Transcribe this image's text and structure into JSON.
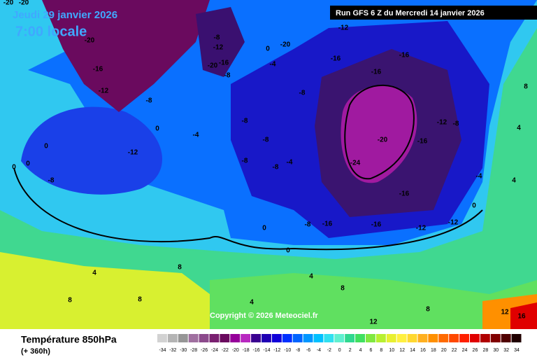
{
  "header": {
    "date": "Jeudi 29 janvier 2026",
    "time": "7:00 locale",
    "run": "Run GFS 6 Z du Mercredi 14 janvier 2026"
  },
  "copyright": "Copyright © 2026 Meteociel.fr",
  "footer": {
    "title": "Température 850hPa",
    "subtitle": "(+ 360h)"
  },
  "scale": {
    "values": [
      -34,
      -32,
      -30,
      -28,
      -26,
      -24,
      -22,
      -20,
      -18,
      -16,
      -14,
      -12,
      -10,
      -8,
      -6,
      -4,
      -2,
      0,
      2,
      4,
      6,
      8,
      10,
      12,
      14,
      16,
      18,
      20,
      22,
      24,
      26,
      28,
      30,
      32,
      34
    ],
    "colors": [
      "#d2d2d2",
      "#b4b4b4",
      "#969696",
      "#a070a0",
      "#8c4a8c",
      "#7a2070",
      "#6a0a5e",
      "#96009a",
      "#b828c0",
      "#3a0090",
      "#2000b4",
      "#1000d8",
      "#0030ff",
      "#0064ff",
      "#0096ff",
      "#00c0ff",
      "#30e0f0",
      "#60f0d0",
      "#30d890",
      "#40e060",
      "#80e840",
      "#b8f030",
      "#e8f030",
      "#fff040",
      "#ffd830",
      "#ffb020",
      "#ff9000",
      "#ff6a00",
      "#ff4800",
      "#ff2000",
      "#e00000",
      "#b00000",
      "#800000",
      "#500000",
      "#200000"
    ]
  },
  "map_labels": [
    "-20",
    "-20",
    "-20",
    "-16",
    "-12",
    "-8",
    "0",
    "0",
    "-12",
    "0",
    "0",
    "-8",
    "-4",
    "-8",
    "-12",
    "-20",
    "-16",
    "-8",
    "0",
    "-4",
    "-20",
    "-12",
    "-16",
    "-16",
    "-16",
    "-8",
    "-20",
    "-24",
    "-16",
    "-12",
    "-8",
    "-16",
    "-16",
    "-16",
    "-12",
    "-8",
    "0",
    "0",
    "-4",
    "4",
    "4",
    "8",
    "8",
    "4",
    "8",
    "4",
    "8",
    "8",
    "4",
    "8",
    "12",
    "12",
    "16",
    "-8",
    "-8",
    "-4",
    "-8",
    "-8",
    "-12",
    "0"
  ]
}
